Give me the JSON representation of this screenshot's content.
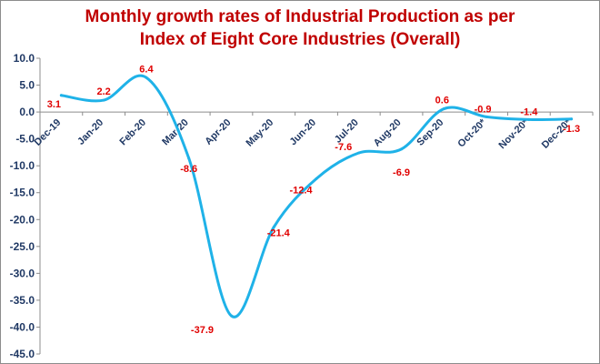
{
  "chart_data": {
    "type": "line",
    "title_line1": "Monthly growth rates of Industrial Production as per",
    "title_line2": "Index of Eight Core Industries (Overall)",
    "categories": [
      "Dec-19",
      "Jan-20",
      "Feb-20",
      "Mar-20",
      "Apr-20",
      "May-20",
      "Jun-20",
      "Jul-20",
      "Aug-20",
      "Sep-20",
      "Oct-20*",
      "Nov-20*",
      "Dec-20*"
    ],
    "values": [
      3.1,
      2.2,
      6.4,
      -8.6,
      -37.9,
      -21.4,
      -12.4,
      -7.6,
      -6.9,
      0.6,
      -0.9,
      -1.4,
      -1.3
    ],
    "ylim": [
      -45,
      10
    ],
    "yticks": [
      10,
      5,
      0,
      -5,
      -10,
      -15,
      -20,
      -25,
      -30,
      -35,
      -40,
      -45
    ],
    "ytick_labels": [
      "10.0",
      "5.0",
      "0.0",
      "-5.0",
      "-10.0",
      "-15.0",
      "-20.0",
      "-25.0",
      "-30.0",
      "-35.0",
      "-40.0",
      "-45.0"
    ],
    "grid": false,
    "legend": "none",
    "colors": {
      "line": "#1fb2e8",
      "title": "#c00000",
      "data_labels": "#e00000",
      "axis_text": "#1f3864",
      "axis_line": "#8c8c8c"
    }
  }
}
